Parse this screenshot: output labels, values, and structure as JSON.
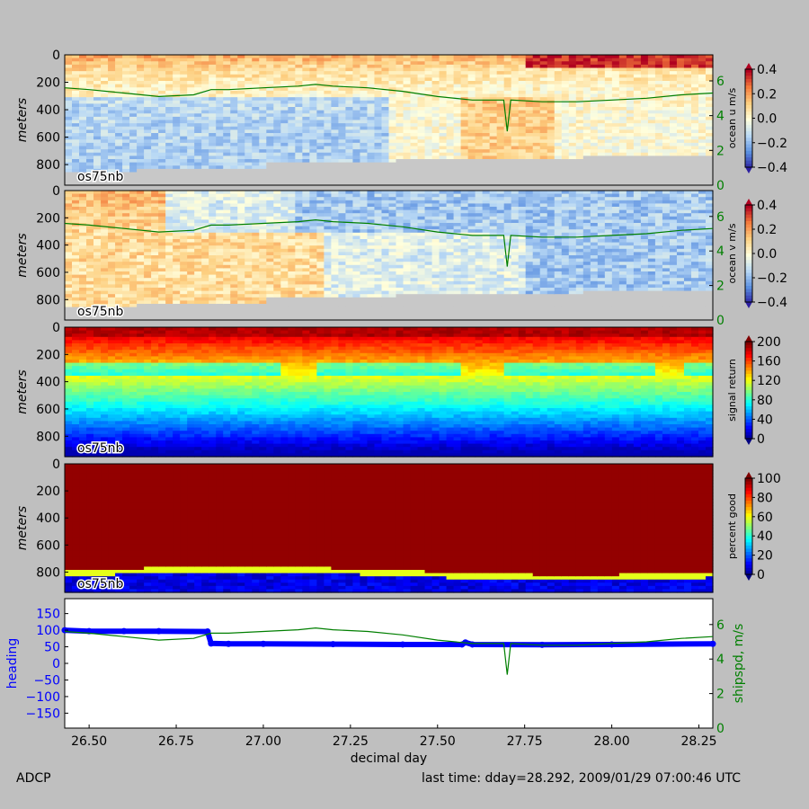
{
  "footer": {
    "left": "ADCP",
    "right": "last time: dday=28.292,  2009/01/29 07:00:46 UTC"
  },
  "colors": {
    "background": "#bfbfbf",
    "shipspd_line": "#007f00",
    "heading_line": "#0000ff",
    "no_data": "#c8c8c8",
    "colormap": [
      "#00007f",
      "#0000ff",
      "#007fff",
      "#00ffff",
      "#7fff7f",
      "#ffff00",
      "#ff7f00",
      "#ff0000",
      "#7f0000"
    ],
    "diverging": [
      "#2c1fa0",
      "#5a8fe0",
      "#b8d8f5",
      "#ffffdd",
      "#fdcf80",
      "#f47a3c",
      "#b00020"
    ]
  },
  "chart_data": [
    {
      "type": "heatmap",
      "ylabel": "meters",
      "yticks": [
        "0",
        "200",
        "400",
        "600",
        "800"
      ],
      "ylim": [
        0,
        950
      ],
      "label": "os75nb",
      "colorbar": {
        "label": "ocean u m/s",
        "ticks": [
          "0.4",
          "0.2",
          "0.0",
          "−0.2",
          "−0.4"
        ],
        "range": [
          -0.45,
          0.45
        ]
      },
      "overlay": {
        "name": "shipspd",
        "ticks": [
          "6",
          "4",
          "2",
          "0"
        ],
        "range": [
          0,
          7.5
        ]
      }
    },
    {
      "type": "heatmap",
      "ylabel": "meters",
      "yticks": [
        "0",
        "200",
        "400",
        "600",
        "800"
      ],
      "ylim": [
        0,
        950
      ],
      "label": "os75nb",
      "colorbar": {
        "label": "ocean v m/s",
        "ticks": [
          "0.4",
          "0.2",
          "0.0",
          "−0.2",
          "−0.4"
        ],
        "range": [
          -0.45,
          0.45
        ]
      },
      "overlay": {
        "name": "shipspd",
        "ticks": [
          "6",
          "4",
          "2",
          "0"
        ],
        "range": [
          0,
          7.5
        ]
      }
    },
    {
      "type": "heatmap",
      "ylabel": "meters",
      "yticks": [
        "0",
        "200",
        "400",
        "600",
        "800"
      ],
      "ylim": [
        0,
        950
      ],
      "label": "os75nb",
      "colorbar": {
        "label": "signal return",
        "ticks": [
          "200",
          "160",
          "120",
          "80",
          "40",
          "0"
        ],
        "range": [
          0,
          200
        ]
      }
    },
    {
      "type": "heatmap",
      "ylabel": "meters",
      "yticks": [
        "0",
        "200",
        "400",
        "600",
        "800"
      ],
      "ylim": [
        0,
        950
      ],
      "label": "os75nb",
      "colorbar": {
        "label": "percent good",
        "ticks": [
          "100",
          "80",
          "60",
          "40",
          "20",
          "0"
        ],
        "range": [
          0,
          100
        ]
      }
    },
    {
      "type": "line",
      "xlabel": "decimal day",
      "xticks": [
        "26.50",
        "26.75",
        "27.00",
        "27.25",
        "27.50",
        "27.75",
        "28.00",
        "28.25"
      ],
      "xlim": [
        26.43,
        28.29
      ],
      "series": [
        {
          "name": "heading",
          "axis": "left",
          "ylim": [
            -195,
            195
          ],
          "yticks": [
            "150",
            "100",
            "50",
            "0",
            "−50",
            "−100",
            "−150"
          ],
          "x": [
            26.43,
            26.5,
            26.6,
            26.7,
            26.84,
            26.85,
            26.9,
            27.0,
            27.2,
            27.4,
            27.57,
            27.58,
            27.6,
            27.8,
            28.0,
            28.29
          ],
          "y": [
            100,
            97,
            97,
            97,
            96,
            60,
            59,
            59,
            58,
            57,
            57,
            63,
            57,
            56,
            57,
            59
          ]
        },
        {
          "name": "shipspd, m/s",
          "axis": "right",
          "ylim": [
            0,
            7.5
          ],
          "yticks": [
            "6",
            "4",
            "2",
            "0"
          ],
          "x": [
            26.43,
            26.5,
            26.6,
            26.7,
            26.8,
            26.85,
            26.9,
            27.0,
            27.1,
            27.15,
            27.2,
            27.3,
            27.4,
            27.5,
            27.6,
            27.69,
            27.7,
            27.71,
            27.8,
            27.9,
            28.0,
            28.1,
            28.2,
            28.29
          ],
          "y": [
            5.6,
            5.5,
            5.3,
            5.1,
            5.2,
            5.5,
            5.5,
            5.6,
            5.7,
            5.8,
            5.7,
            5.6,
            5.4,
            5.1,
            4.9,
            4.9,
            3.1,
            4.9,
            4.8,
            4.8,
            4.9,
            5.0,
            5.2,
            5.3
          ]
        }
      ]
    }
  ]
}
